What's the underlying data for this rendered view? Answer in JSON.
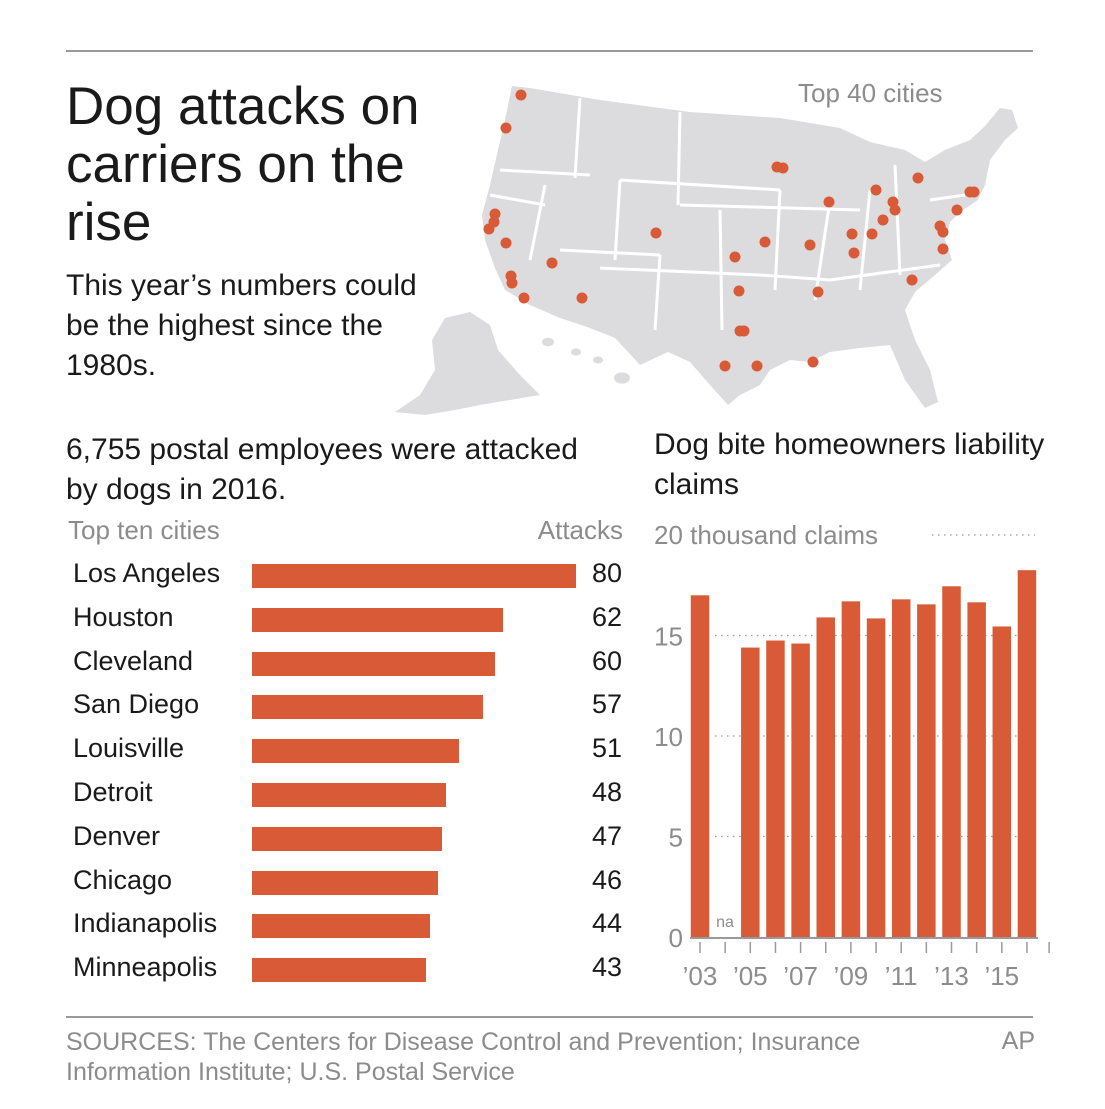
{
  "header": {
    "title": "Dog attacks on carriers on the rise",
    "subtitle": "This year’s numbers could be the highest since the 1980s."
  },
  "map": {
    "label": "Top 40 cities",
    "land_color": "#dcdcde",
    "dot_color": "#d85a36"
  },
  "footer": {
    "sources": "SOURCES: The Centers for Disease Control and Prevention; Insurance Information Institute; U.S. Postal Service",
    "credit": "AP"
  },
  "colors": {
    "bar": "#d85a36",
    "label_gray": "#8c8c8c",
    "text": "#1a1a1a"
  },
  "chart_data": [
    {
      "type": "bar",
      "orientation": "horizontal",
      "title": "6,755 postal employees were attacked by dogs in 2016.",
      "category_header": "Top ten cities",
      "value_header": "Attacks",
      "categories": [
        "Los Angeles",
        "Houston",
        "Cleveland",
        "San Diego",
        "Louisville",
        "Detroit",
        "Denver",
        "Chicago",
        "Indianapolis",
        "Minneapolis"
      ],
      "values": [
        80,
        62,
        60,
        57,
        51,
        48,
        47,
        46,
        44,
        43
      ],
      "xlim": [
        0,
        80
      ],
      "grid": false
    },
    {
      "type": "bar",
      "orientation": "vertical",
      "title": "Dog bite homeowners liability claims",
      "ylabel": "20 thousand claims",
      "units": "thousand claims",
      "x": [
        2003,
        2004,
        2005,
        2006,
        2007,
        2008,
        2009,
        2010,
        2011,
        2012,
        2013,
        2014,
        2015,
        2016
      ],
      "values": [
        17.0,
        null,
        14.4,
        14.75,
        14.6,
        15.9,
        16.7,
        15.85,
        16.8,
        16.55,
        17.45,
        16.65,
        15.45,
        18.25
      ],
      "missing_label": "na",
      "x_tick_labels": [
        "’03",
        "’05",
        "’07",
        "’09",
        "’11",
        "’13",
        "’15"
      ],
      "x_tick_label_years": [
        2003,
        2005,
        2007,
        2009,
        2011,
        2013,
        2015
      ],
      "y_ticks": [
        0,
        5,
        10,
        15,
        20
      ],
      "y_tick_labels": [
        "0",
        "5",
        "10",
        "15",
        "20 thousand claims"
      ],
      "ylim": [
        0,
        20
      ],
      "grid": "dotted horizontal"
    }
  ]
}
